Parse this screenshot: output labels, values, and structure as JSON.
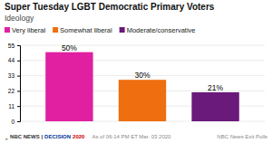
{
  "chart_data": {
    "type": "bar",
    "title": "Super Tuesday LGBT Democratic Primary Voters",
    "subtitle": "Ideology",
    "categories": [
      "Very liberal",
      "Somewhat liberal",
      "Moderate/conservative"
    ],
    "values": [
      50,
      30,
      21
    ],
    "value_labels": [
      "50%",
      "30%",
      "21%"
    ],
    "colors": [
      "#e020a0",
      "#ee6e10",
      "#6a1a7a"
    ],
    "ylim": [
      0,
      55
    ],
    "yticks": [
      0,
      11,
      22,
      33,
      44,
      55
    ],
    "grid": true,
    "legend": "upper left",
    "data_labels": true,
    "tick_labels": "y",
    "annotations": [
      "‸ NBC NEWS |",
      "DECISION",
      "2020",
      "As of 06:14 PM ET Mar. 03 2020",
      "NBC News Exit Polls"
    ]
  }
}
